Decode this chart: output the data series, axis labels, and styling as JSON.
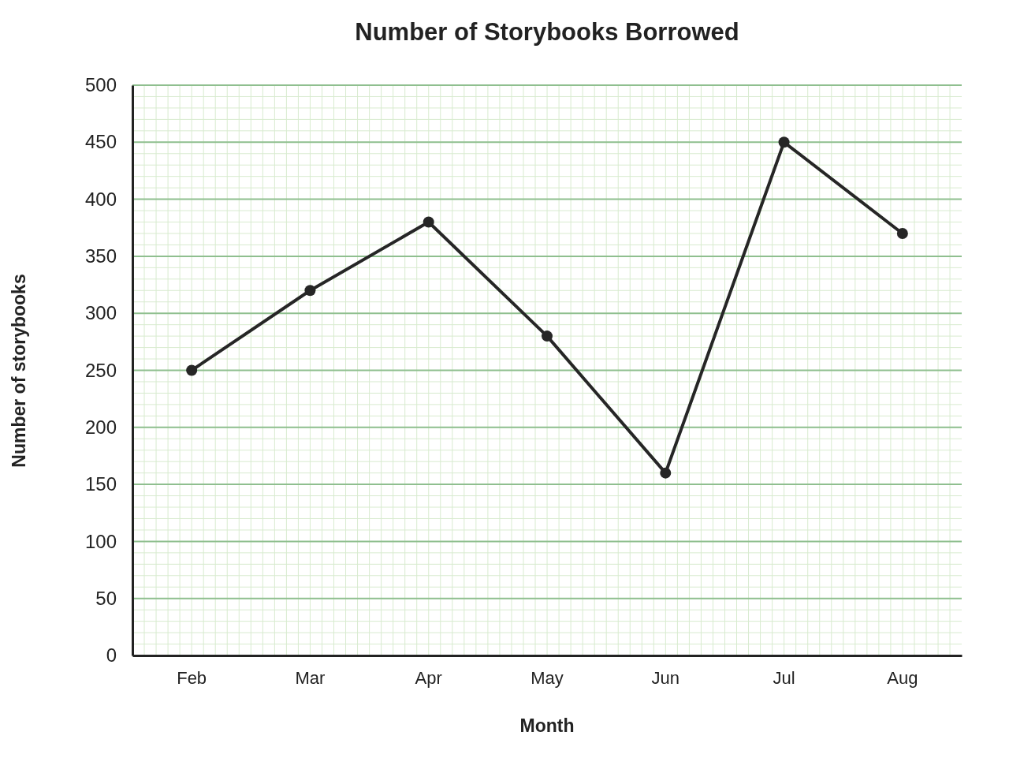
{
  "chart_data": {
    "type": "line",
    "title": "Number of Storybooks Borrowed",
    "xlabel": "Month",
    "ylabel": "Number of storybooks",
    "categories": [
      "Feb",
      "Mar",
      "Apr",
      "May",
      "Jun",
      "Jul",
      "Aug"
    ],
    "series": [
      {
        "color": "#262626",
        "values": [
          250,
          320,
          380,
          280,
          160,
          450,
          370
        ]
      }
    ],
    "ylim": [
      0,
      500
    ],
    "yticks": [
      0,
      50,
      100,
      150,
      200,
      250,
      300,
      350,
      400,
      450,
      500
    ],
    "grid": true,
    "marker": "circle",
    "line_style": "solid"
  }
}
